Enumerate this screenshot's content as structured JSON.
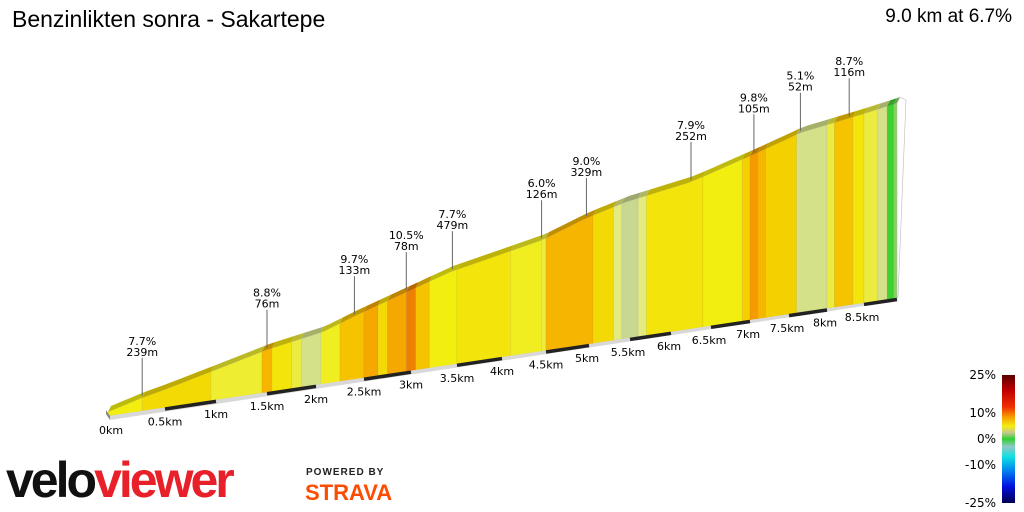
{
  "header": {
    "title": "Benzinlikten sonra - Sakartepe",
    "summary": "9.0 km at 6.7%"
  },
  "logo": {
    "velo": "velo",
    "viewer": "viewer",
    "powered_by": "POWERED BY",
    "strava": "STRAVA"
  },
  "colors": {
    "strava": "#fc4c02",
    "veloviewer_red": "#e8202a"
  },
  "chart_data": {
    "type": "area",
    "title": "Benzinlikten sonra - Sakartepe",
    "x_unit": "km",
    "x_ticks": [
      "0km",
      "0.5km",
      "1km",
      "1.5km",
      "2km",
      "2.5km",
      "3km",
      "3.5km",
      "4km",
      "4.5km",
      "5km",
      "5.5km",
      "6km",
      "6.5km",
      "7km",
      "7.5km",
      "8km",
      "8.5km"
    ],
    "x_tick_values": [
      0,
      0.5,
      1,
      1.5,
      2,
      2.5,
      3,
      3.5,
      4,
      4.5,
      5,
      5.5,
      6,
      6.5,
      7,
      7.5,
      8,
      8.5
    ],
    "xlim": [
      0,
      9.0
    ],
    "profile": [
      [
        0,
        0
      ],
      [
        0.29,
        28
      ],
      [
        0.95,
        79
      ],
      [
        1.5,
        122
      ],
      [
        2.07,
        152
      ],
      [
        2.4,
        187
      ],
      [
        2.87,
        231
      ],
      [
        3.43,
        282
      ],
      [
        4.45,
        339
      ],
      [
        4.97,
        388
      ],
      [
        5.45,
        420
      ],
      [
        6.25,
        453
      ],
      [
        7.08,
        513
      ],
      [
        7.65,
        557
      ],
      [
        8.3,
        580
      ],
      [
        9.0,
        605
      ]
    ],
    "profile_unit": "m",
    "segments": [
      [
        0,
        0.3,
        6.5
      ],
      [
        0.3,
        0.95,
        7.5
      ],
      [
        0.95,
        1.45,
        5.5
      ],
      [
        1.45,
        1.55,
        9
      ],
      [
        1.55,
        1.75,
        7
      ],
      [
        1.75,
        1.85,
        5
      ],
      [
        1.85,
        2.05,
        3
      ],
      [
        2.05,
        2.25,
        6
      ],
      [
        2.25,
        2.5,
        8.5
      ],
      [
        2.5,
        2.65,
        9.5
      ],
      [
        2.65,
        2.75,
        7.5
      ],
      [
        2.75,
        2.95,
        9.5
      ],
      [
        2.95,
        3.05,
        11
      ],
      [
        3.05,
        3.2,
        8.5
      ],
      [
        3.2,
        3.5,
        6.5
      ],
      [
        3.5,
        4.1,
        7
      ],
      [
        4.1,
        4.45,
        6
      ],
      [
        4.45,
        4.5,
        5
      ],
      [
        4.5,
        5.05,
        9
      ],
      [
        5.05,
        5.3,
        7.5
      ],
      [
        5.3,
        5.4,
        4
      ],
      [
        5.4,
        5.6,
        2
      ],
      [
        5.6,
        5.7,
        4
      ],
      [
        5.7,
        6.4,
        7
      ],
      [
        6.4,
        6.9,
        6.5
      ],
      [
        6.9,
        7.0,
        8
      ],
      [
        7.0,
        7.1,
        10
      ],
      [
        7.1,
        7.2,
        9
      ],
      [
        7.2,
        7.6,
        8
      ],
      [
        7.6,
        8.0,
        3
      ],
      [
        8.0,
        8.1,
        5
      ],
      [
        8.1,
        8.35,
        8.5
      ],
      [
        8.35,
        8.5,
        7
      ],
      [
        8.5,
        8.7,
        5
      ],
      [
        8.7,
        8.85,
        3
      ],
      [
        8.85,
        8.95,
        0
      ],
      [
        8.95,
        9.0,
        1
      ]
    ],
    "annotations": [
      {
        "km": 0.3,
        "grade": "7.7%",
        "length": "239m"
      },
      {
        "km": 1.5,
        "grade": "8.8%",
        "length": "76m"
      },
      {
        "km": 2.4,
        "grade": "9.7%",
        "length": "133m"
      },
      {
        "km": 2.95,
        "grade": "10.5%",
        "length": "78m"
      },
      {
        "km": 3.45,
        "grade": "7.7%",
        "length": "479m"
      },
      {
        "km": 4.45,
        "grade": "6.0%",
        "length": "126m"
      },
      {
        "km": 4.97,
        "grade": "9.0%",
        "length": "329m"
      },
      {
        "km": 6.25,
        "grade": "7.9%",
        "length": "252m"
      },
      {
        "km": 7.05,
        "grade": "9.8%",
        "length": "105m"
      },
      {
        "km": 7.65,
        "grade": "5.1%",
        "length": "52m"
      },
      {
        "km": 8.3,
        "grade": "8.7%",
        "length": "116m"
      }
    ],
    "legend": {
      "title": "",
      "labels": [
        "25%",
        "10%",
        "0%",
        "-10%",
        "-25%"
      ],
      "values": [
        25,
        10,
        0,
        -10,
        -25
      ],
      "placement": "bottom-right"
    }
  }
}
